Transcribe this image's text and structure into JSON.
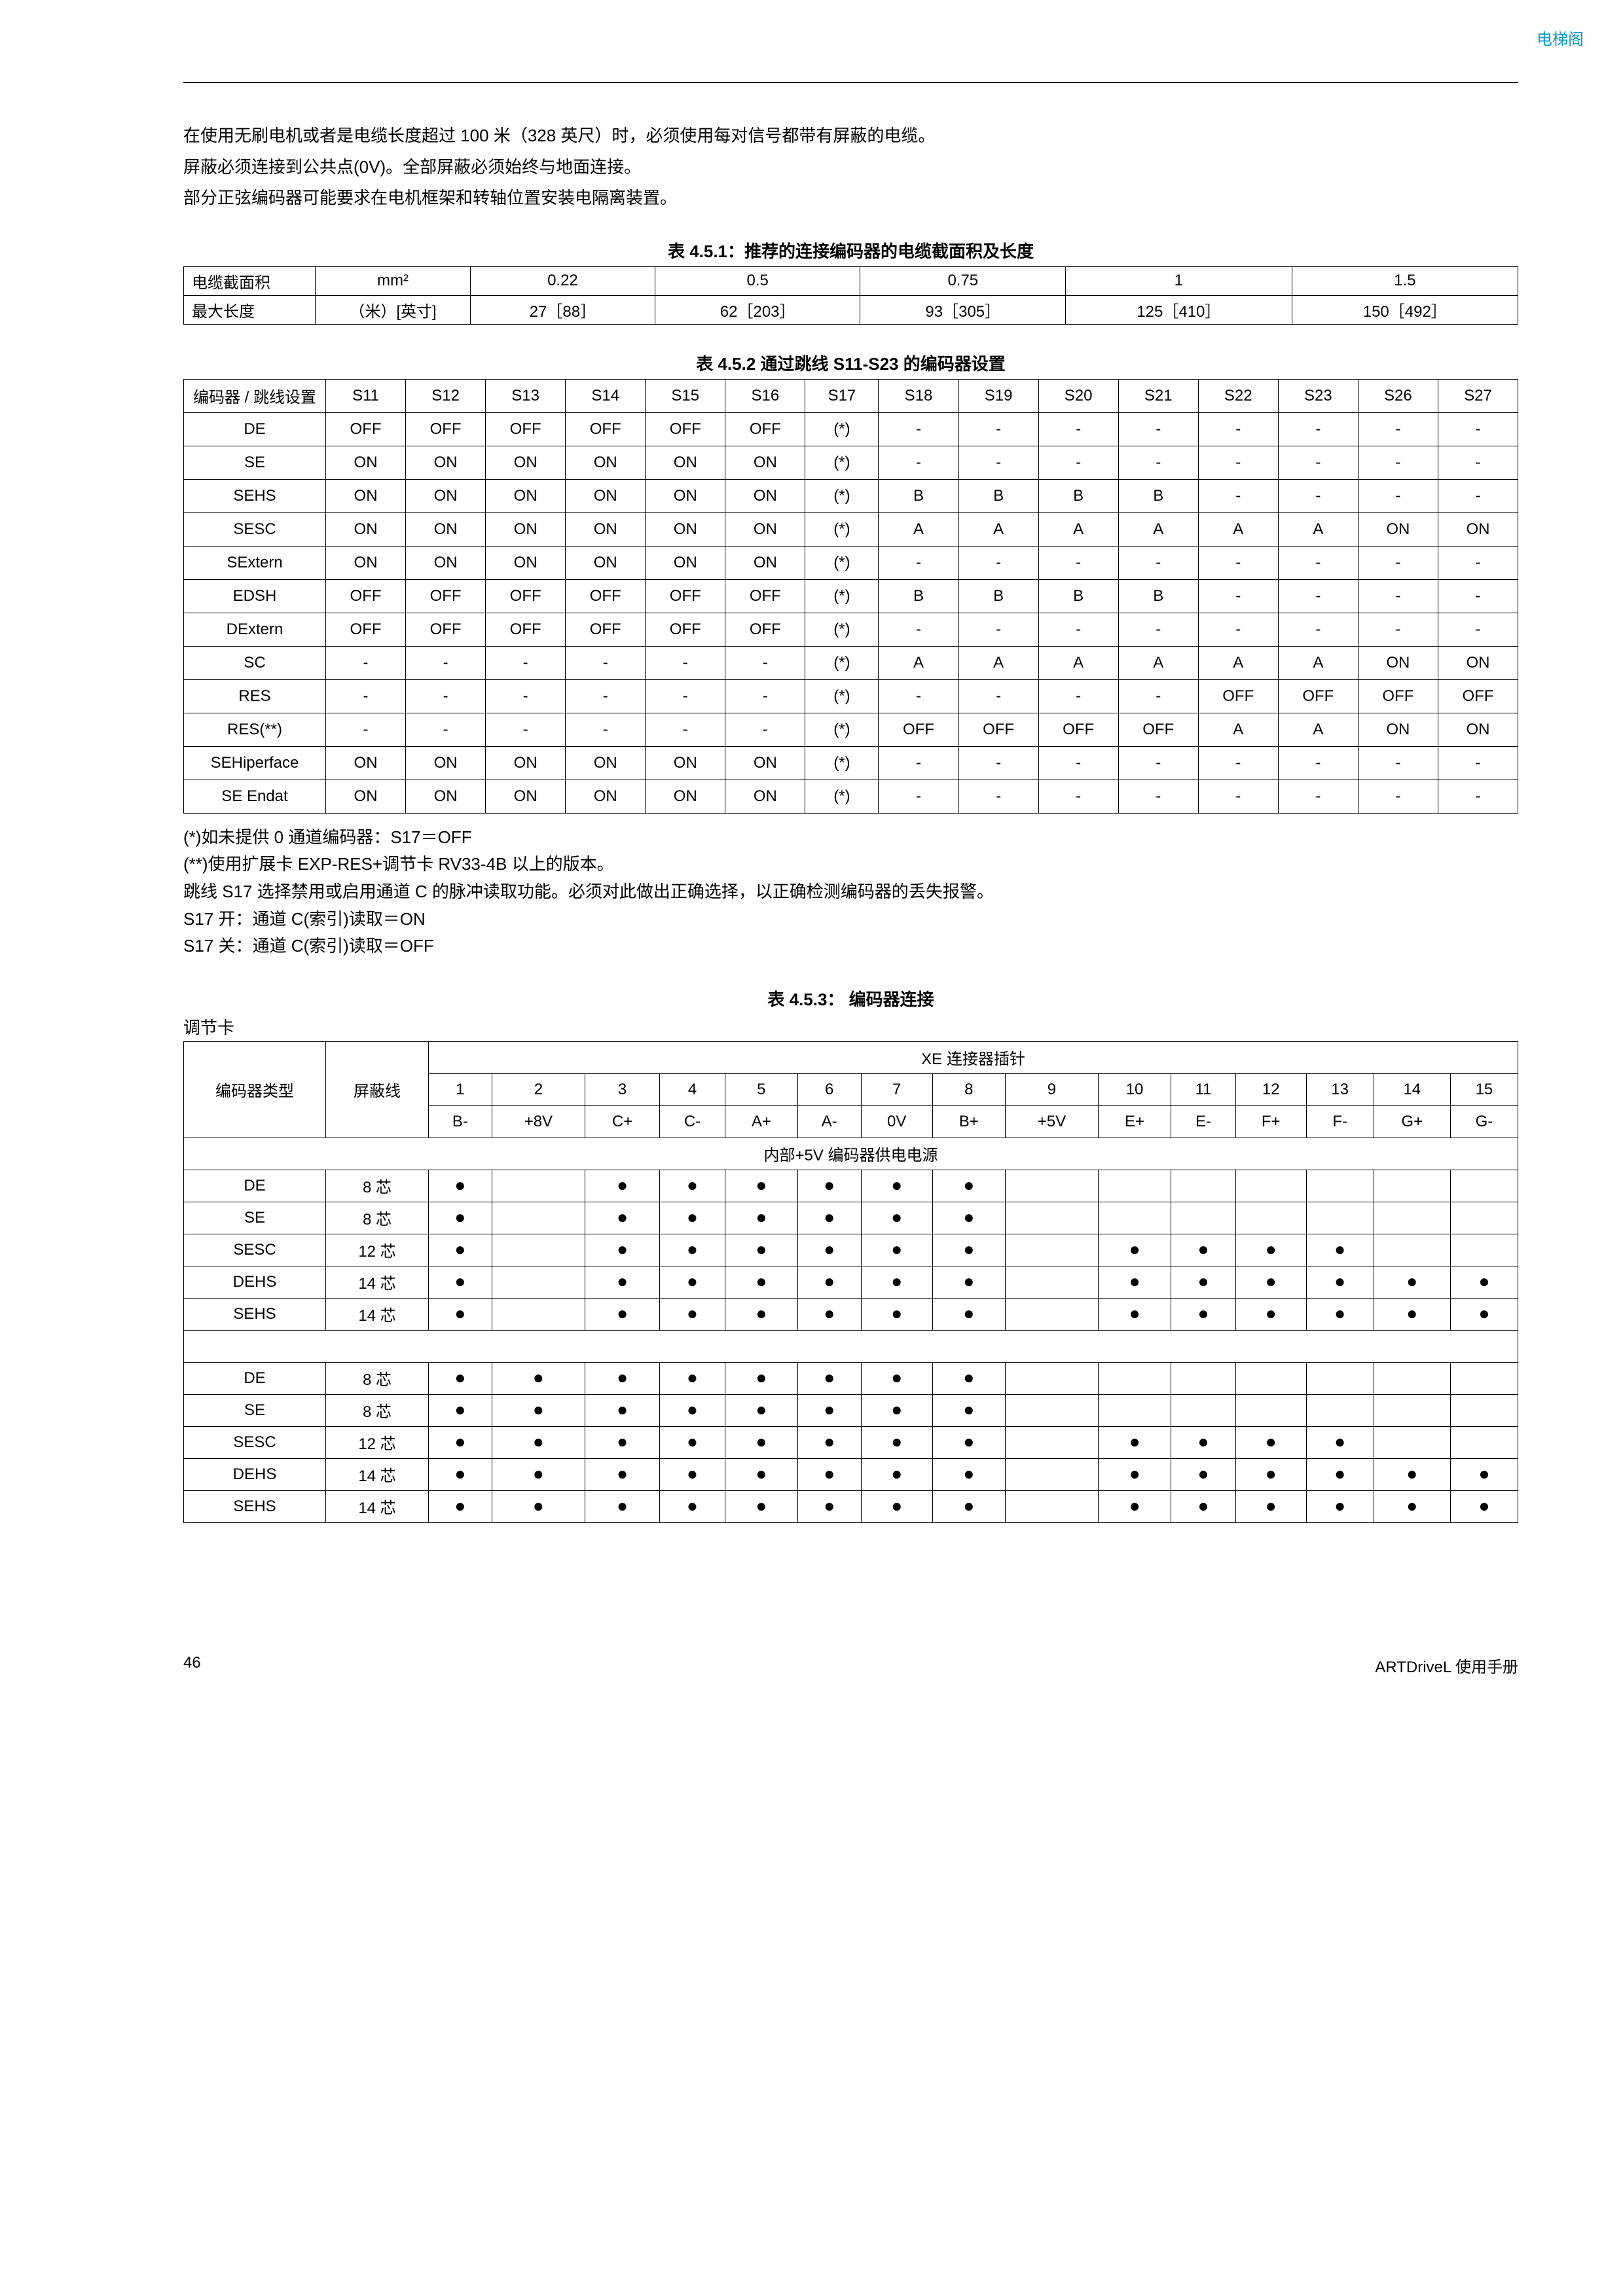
{
  "header_link": "电梯阁",
  "paragraphs": [
    "在使用无刷电机或者是电缆长度超过 100 米（328 英尺）时，必须使用每对信号都带有屏蔽的电缆。",
    "屏蔽必须连接到公共点(0V)。全部屏蔽必须始终与地面连接。",
    "部分正弦编码器可能要求在电机框架和转轴位置安装电隔离装置。"
  ],
  "table451": {
    "title": "表 4.5.1：推荐的连接编码器的电缆截面积及长度",
    "rows": [
      [
        "电缆截面积",
        "mm²",
        "0.22",
        "0.5",
        "0.75",
        "1",
        "1.5"
      ],
      [
        "最大长度",
        "（米）[英寸]",
        "27［88］",
        "62［203］",
        "93［305］",
        "125［410］",
        "150［492］"
      ]
    ]
  },
  "table452": {
    "title": "表 4.5.2  通过跳线 S11-S23 的编码器设置",
    "header_label": "编码器 / 跳线设置",
    "cols": [
      "S11",
      "S12",
      "S13",
      "S14",
      "S15",
      "S16",
      "S17",
      "S18",
      "S19",
      "S20",
      "S21",
      "S22",
      "S23",
      "S26",
      "S27"
    ],
    "rows": [
      {
        "name": "DE",
        "v": [
          "OFF",
          "OFF",
          "OFF",
          "OFF",
          "OFF",
          "OFF",
          "(*)",
          "-",
          "-",
          "-",
          "-",
          "-",
          "-",
          "-",
          "-"
        ]
      },
      {
        "name": "SE",
        "v": [
          "ON",
          "ON",
          "ON",
          "ON",
          "ON",
          "ON",
          "(*)",
          "-",
          "-",
          "-",
          "-",
          "-",
          "-",
          "-",
          "-"
        ]
      },
      {
        "name": "SEHS",
        "v": [
          "ON",
          "ON",
          "ON",
          "ON",
          "ON",
          "ON",
          "(*)",
          "B",
          "B",
          "B",
          "B",
          "-",
          "-",
          "-",
          "-"
        ]
      },
      {
        "name": "SESC",
        "v": [
          "ON",
          "ON",
          "ON",
          "ON",
          "ON",
          "ON",
          "(*)",
          "A",
          "A",
          "A",
          "A",
          "A",
          "A",
          "ON",
          "ON"
        ]
      },
      {
        "name": "SExtern",
        "v": [
          "ON",
          "ON",
          "ON",
          "ON",
          "ON",
          "ON",
          "(*)",
          "-",
          "-",
          "-",
          "-",
          "-",
          "-",
          "-",
          "-"
        ]
      },
      {
        "name": "EDSH",
        "v": [
          "OFF",
          "OFF",
          "OFF",
          "OFF",
          "OFF",
          "OFF",
          "(*)",
          "B",
          "B",
          "B",
          "B",
          "-",
          "-",
          "-",
          "-"
        ]
      },
      {
        "name": "DExtern",
        "v": [
          "OFF",
          "OFF",
          "OFF",
          "OFF",
          "OFF",
          "OFF",
          "(*)",
          "-",
          "-",
          "-",
          "-",
          "-",
          "-",
          "-",
          "-"
        ]
      },
      {
        "name": "SC",
        "v": [
          "-",
          "-",
          "-",
          "-",
          "-",
          "-",
          "(*)",
          "A",
          "A",
          "A",
          "A",
          "A",
          "A",
          "ON",
          "ON"
        ]
      },
      {
        "name": "RES",
        "v": [
          "-",
          "-",
          "-",
          "-",
          "-",
          "-",
          "(*)",
          "-",
          "-",
          "-",
          "-",
          "OFF",
          "OFF",
          "OFF",
          "OFF"
        ]
      },
      {
        "name": "RES(**)",
        "v": [
          "-",
          "-",
          "-",
          "-",
          "-",
          "-",
          "(*)",
          "OFF",
          "OFF",
          "OFF",
          "OFF",
          "A",
          "A",
          "ON",
          "ON"
        ]
      },
      {
        "name": "SEHiperface",
        "v": [
          "ON",
          "ON",
          "ON",
          "ON",
          "ON",
          "ON",
          "(*)",
          "-",
          "-",
          "-",
          "-",
          "-",
          "-",
          "-",
          "-"
        ]
      },
      {
        "name": "SE Endat",
        "v": [
          "ON",
          "ON",
          "ON",
          "ON",
          "ON",
          "ON",
          "(*)",
          "-",
          "-",
          "-",
          "-",
          "-",
          "-",
          "-",
          "-"
        ]
      }
    ]
  },
  "notes": [
    "(*)如未提供 0 通道编码器：S17＝OFF",
    "(**)使用扩展卡 EXP-RES+调节卡 RV33-4B 以上的版本。",
    "跳线 S17 选择禁用或启用通道 C 的脉冲读取功能。必须对此做出正确选择，以正确检测编码器的丢失报警。",
    "S17 开：通道 C(索引)读取＝ON",
    "S17 关：通道 C(索引)读取＝OFF"
  ],
  "table453": {
    "title": "表 4.5.3：  编码器连接",
    "subtitle_left": "调节卡",
    "col_encoder_type": "编码器类型",
    "col_shield": "屏蔽线",
    "col_xe_header": "XE 连接器插针",
    "pin_nums": [
      "1",
      "2",
      "3",
      "4",
      "5",
      "6",
      "7",
      "8",
      "9",
      "10",
      "11",
      "12",
      "13",
      "14",
      "15"
    ],
    "pin_labels": [
      "B-",
      "+8V",
      "C+",
      "C-",
      "A+",
      "A-",
      "0V",
      "B+",
      "+5V",
      "E+",
      "E-",
      "F+",
      "F-",
      "G+",
      "G-"
    ],
    "section1_header": "内部+5V 编码器供电电源",
    "section1_rows": [
      {
        "name": "DE",
        "shield": "8 芯",
        "p": [
          1,
          0,
          1,
          1,
          1,
          1,
          1,
          1,
          0,
          0,
          0,
          0,
          0,
          0,
          0
        ]
      },
      {
        "name": "SE",
        "shield": "8 芯",
        "p": [
          1,
          0,
          1,
          1,
          1,
          1,
          1,
          1,
          0,
          0,
          0,
          0,
          0,
          0,
          0
        ]
      },
      {
        "name": "SESC",
        "shield": "12 芯",
        "p": [
          1,
          0,
          1,
          1,
          1,
          1,
          1,
          1,
          0,
          1,
          1,
          1,
          1,
          0,
          0
        ]
      },
      {
        "name": "DEHS",
        "shield": "14 芯",
        "p": [
          1,
          0,
          1,
          1,
          1,
          1,
          1,
          1,
          0,
          1,
          1,
          1,
          1,
          1,
          1
        ]
      },
      {
        "name": "SEHS",
        "shield": "14 芯",
        "p": [
          1,
          0,
          1,
          1,
          1,
          1,
          1,
          1,
          0,
          1,
          1,
          1,
          1,
          1,
          1
        ]
      }
    ],
    "section2_rows": [
      {
        "name": "DE",
        "shield": "8 芯",
        "p": [
          1,
          1,
          1,
          1,
          1,
          1,
          1,
          1,
          0,
          0,
          0,
          0,
          0,
          0,
          0
        ]
      },
      {
        "name": "SE",
        "shield": "8 芯",
        "p": [
          1,
          1,
          1,
          1,
          1,
          1,
          1,
          1,
          0,
          0,
          0,
          0,
          0,
          0,
          0
        ]
      },
      {
        "name": "SESC",
        "shield": "12 芯",
        "p": [
          1,
          1,
          1,
          1,
          1,
          1,
          1,
          1,
          0,
          1,
          1,
          1,
          1,
          0,
          0
        ]
      },
      {
        "name": "DEHS",
        "shield": "14 芯",
        "p": [
          1,
          1,
          1,
          1,
          1,
          1,
          1,
          1,
          0,
          1,
          1,
          1,
          1,
          1,
          1
        ]
      },
      {
        "name": "SEHS",
        "shield": "14 芯",
        "p": [
          1,
          1,
          1,
          1,
          1,
          1,
          1,
          1,
          0,
          1,
          1,
          1,
          1,
          1,
          1
        ]
      }
    ]
  },
  "footer": {
    "page": "46",
    "right": "ARTDriveL 使用手册"
  },
  "colors": {
    "link": "#0099cc",
    "text": "#000000",
    "border": "#000000"
  }
}
